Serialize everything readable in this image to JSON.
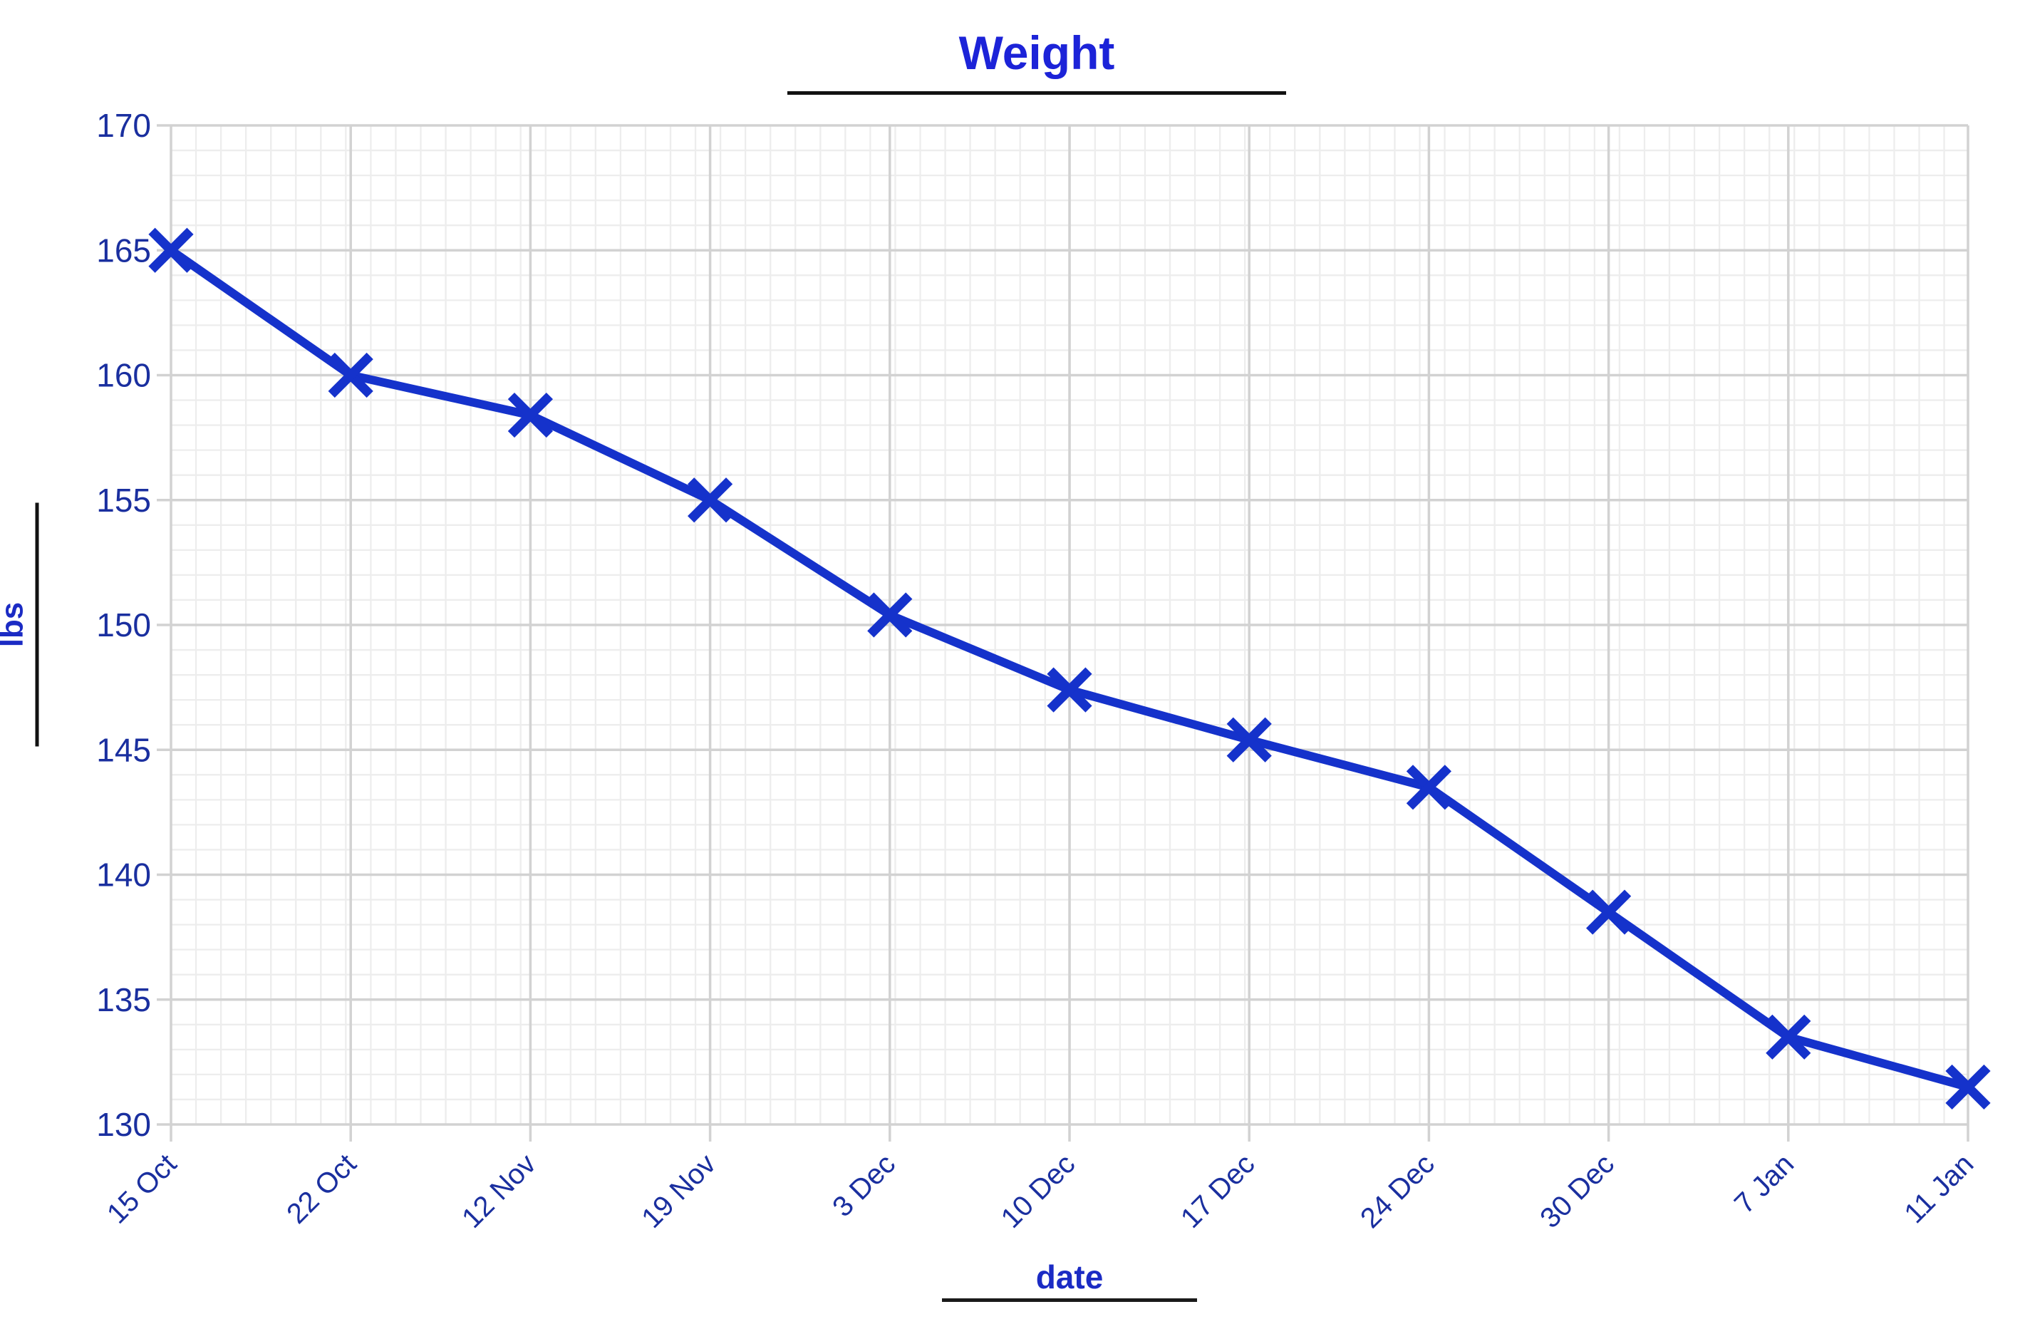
{
  "chart_data": {
    "type": "line",
    "title": "Weight",
    "xlabel": "date",
    "ylabel": "lbs",
    "categories": [
      "15 Oct",
      "22 Oct",
      "12 Nov",
      "19 Nov",
      "3 Dec",
      "10 Dec",
      "17 Dec",
      "24 Dec",
      "30 Dec",
      "7 Jan",
      "11 Jan"
    ],
    "series": [
      {
        "name": "Weight",
        "values": [
          165,
          160,
          158.4,
          155,
          150.4,
          147.4,
          145.4,
          143.5,
          138.5,
          133.5,
          131.5
        ]
      }
    ],
    "ylim": [
      130,
      170
    ],
    "ytick_step": 5,
    "grid": "major+minor",
    "legend": "none",
    "marker": "x",
    "x_tick_rotation": -45,
    "colors": {
      "line": "#1532cb",
      "marker": "#1532cb",
      "tick_label": "#1a2f9f",
      "title": "#1c23d8",
      "axis_label": "#1b2bc4",
      "underline": "#121212",
      "grid_major": "#d2d2d2",
      "grid_minor": "#ededed",
      "tick_mark": "#c9c9c9",
      "background": "#ffffff"
    }
  }
}
